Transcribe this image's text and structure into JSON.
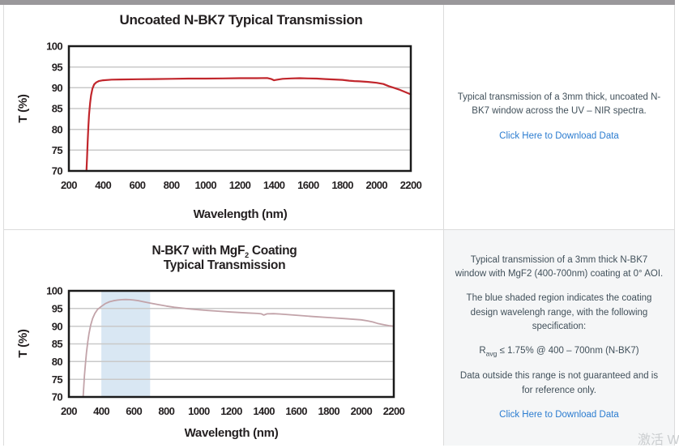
{
  "page": {
    "watermark": "激活 W",
    "colors": {
      "top_bar": "#9a989b",
      "divider": "#dcdcdc",
      "bottom_right_cell_bg": "#f5f6f7",
      "chart_text": "#231f20",
      "body_text": "#41505a",
      "link_blue": "#2b7cd0",
      "uncoated_line_red": "#c1262c",
      "coated_line_mauve": "#c2a3a9",
      "coating_band_blue": "#d9e7f3"
    }
  },
  "panels": {
    "top_right": {
      "description": "Typical transmission of a 3mm thick, uncoated N-BK7 window across the UV – NIR spectra.",
      "link": "Click Here to Download Data"
    },
    "bottom_right": {
      "p1": "Typical transmission of a 3mm thick N-BK7 window with MgF2 (400-700nm) coating at 0° AOI.",
      "p2": "The blue shaded region indicates the coating design wavelengh range, with the following specification:",
      "spec_prefix": "R",
      "spec_sub": "avg",
      "spec_rest": " ≤ 1.75% @ 400 – 700nm (N-BK7)",
      "p3": "Data outside this range is not guaranteed and is for reference only.",
      "link": "Click Here to Download Data"
    }
  },
  "chart_data": [
    {
      "type": "line",
      "title": "Uncoated N-BK7 Typical Transmission",
      "xlabel": "Wavelength (nm)",
      "ylabel": "T (%)",
      "xlim": [
        200,
        2200
      ],
      "ylim": [
        70,
        100
      ],
      "xticks": [
        200,
        400,
        600,
        800,
        1000,
        1200,
        1400,
        1600,
        1800,
        2000,
        2200
      ],
      "yticks": [
        70,
        75,
        80,
        85,
        90,
        95,
        100
      ],
      "grid": "horizontal",
      "line_color": "#c1262c",
      "line_width": 2.2,
      "series": [
        {
          "name": "Uncoated N-BK7",
          "x": [
            303,
            306,
            310,
            314,
            318,
            324,
            330,
            338,
            348,
            360,
            375,
            400,
            450,
            500,
            600,
            700,
            800,
            900,
            1000,
            1100,
            1200,
            1300,
            1360,
            1385,
            1400,
            1420,
            1450,
            1500,
            1550,
            1600,
            1650,
            1700,
            1750,
            1800,
            1840,
            1870,
            1900,
            1950,
            2000,
            2040,
            2070,
            2100,
            2130,
            2160,
            2200
          ],
          "y": [
            70,
            73,
            77,
            80.8,
            83.5,
            86.3,
            88.2,
            89.8,
            90.8,
            91.3,
            91.6,
            91.8,
            91.95,
            92.0,
            92.05,
            92.1,
            92.15,
            92.2,
            92.2,
            92.25,
            92.3,
            92.3,
            92.35,
            92.1,
            91.8,
            91.95,
            92.15,
            92.25,
            92.3,
            92.25,
            92.2,
            92.1,
            92.0,
            91.9,
            91.7,
            91.6,
            91.55,
            91.4,
            91.2,
            90.9,
            90.4,
            90.0,
            89.6,
            89.1,
            88.4
          ]
        }
      ]
    },
    {
      "type": "line",
      "title_line1_pre": "N-BK7 with MgF",
      "title_line1_sub": "2",
      "title_line1_post": " Coating",
      "title_line2": "Typical Transmission",
      "xlabel": "Wavelength (nm)",
      "ylabel": "T (%)",
      "xlim": [
        200,
        2200
      ],
      "ylim": [
        70,
        100
      ],
      "xticks": [
        200,
        400,
        600,
        800,
        1000,
        1200,
        1400,
        1600,
        1800,
        2000,
        2200
      ],
      "yticks": [
        70,
        75,
        80,
        85,
        90,
        95,
        100
      ],
      "grid": "horizontal",
      "line_color": "#c2a3a9",
      "line_width": 1.8,
      "band": {
        "x_start": 400,
        "x_end": 700,
        "color": "#d9e7f3"
      },
      "series": [
        {
          "name": "N-BK7 with MgF2 coating",
          "x": [
            288,
            292,
            296,
            302,
            308,
            316,
            324,
            334,
            346,
            360,
            376,
            400,
            425,
            450,
            475,
            500,
            525,
            550,
            575,
            600,
            630,
            660,
            700,
            750,
            800,
            850,
            900,
            950,
            1000,
            1100,
            1200,
            1300,
            1360,
            1385,
            1400,
            1420,
            1460,
            1500,
            1600,
            1700,
            1800,
            1900,
            2000,
            2040,
            2070,
            2100,
            2140,
            2170,
            2200
          ],
          "y": [
            70,
            73,
            76,
            79.5,
            82.5,
            85.5,
            88,
            90.3,
            92.2,
            93.6,
            94.7,
            95.6,
            96.4,
            96.9,
            97.2,
            97.4,
            97.5,
            97.55,
            97.5,
            97.4,
            97.2,
            96.9,
            96.55,
            96.1,
            95.7,
            95.35,
            95.1,
            94.85,
            94.65,
            94.3,
            94.0,
            93.75,
            93.6,
            93.5,
            93.15,
            93.5,
            93.55,
            93.45,
            93.1,
            92.75,
            92.45,
            92.15,
            91.8,
            91.5,
            91.2,
            90.8,
            90.4,
            90.15,
            90.0
          ]
        }
      ]
    }
  ]
}
